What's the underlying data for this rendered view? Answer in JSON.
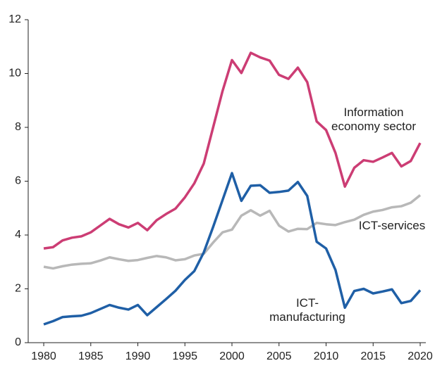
{
  "chart_data": {
    "type": "line",
    "x": [
      1980,
      1981,
      1982,
      1983,
      1984,
      1985,
      1986,
      1987,
      1988,
      1989,
      1990,
      1991,
      1992,
      1993,
      1994,
      1995,
      1996,
      1997,
      1998,
      1999,
      2000,
      2001,
      2002,
      2003,
      2004,
      2005,
      2006,
      2007,
      2008,
      2009,
      2010,
      2011,
      2012,
      2013,
      2014,
      2015,
      2016,
      2017,
      2018,
      2019,
      2020
    ],
    "series": [
      {
        "name": "Information economy sector",
        "color": "#cc3d74",
        "values": [
          3.5,
          3.55,
          3.8,
          3.9,
          3.95,
          4.1,
          4.35,
          4.6,
          4.4,
          4.28,
          4.45,
          4.18,
          4.55,
          4.78,
          4.98,
          5.4,
          5.92,
          6.65,
          8.0,
          9.35,
          10.5,
          10.02,
          10.77,
          10.6,
          10.48,
          9.95,
          9.8,
          10.22,
          9.68,
          8.22,
          7.9,
          7.05,
          5.8,
          6.5,
          6.78,
          6.72,
          6.88,
          7.05,
          6.55,
          6.75,
          7.42
        ]
      },
      {
        "name": "ICT-services",
        "color": "#b8b8b8",
        "values": [
          2.82,
          2.76,
          2.84,
          2.9,
          2.93,
          2.95,
          3.05,
          3.17,
          3.1,
          3.04,
          3.07,
          3.15,
          3.22,
          3.17,
          3.06,
          3.1,
          3.24,
          3.3,
          3.72,
          4.1,
          4.2,
          4.72,
          4.92,
          4.72,
          4.9,
          4.35,
          4.13,
          4.23,
          4.22,
          4.45,
          4.4,
          4.37,
          4.48,
          4.57,
          4.75,
          4.87,
          4.93,
          5.03,
          5.07,
          5.2,
          5.48
        ]
      },
      {
        "name": "ICT-manufacturing",
        "color": "#1f5fa6",
        "values": [
          0.68,
          0.8,
          0.95,
          0.98,
          1.0,
          1.1,
          1.25,
          1.4,
          1.3,
          1.23,
          1.4,
          1.02,
          1.32,
          1.62,
          1.93,
          2.33,
          2.66,
          3.35,
          4.3,
          5.3,
          6.3,
          5.27,
          5.83,
          5.85,
          5.57,
          5.6,
          5.65,
          5.97,
          5.45,
          3.75,
          3.5,
          2.7,
          1.3,
          1.92,
          2.0,
          1.83,
          1.9,
          1.98,
          1.47,
          1.55,
          1.95
        ]
      }
    ],
    "xlim": [
      1978.35,
      2020.6
    ],
    "xticks": [
      1980,
      1985,
      1990,
      1995,
      2000,
      2005,
      2010,
      2015,
      2020
    ],
    "ylim": [
      0,
      12
    ],
    "yticks": [
      0,
      2,
      4,
      6,
      8,
      10,
      12
    ],
    "grid": false
  }
}
